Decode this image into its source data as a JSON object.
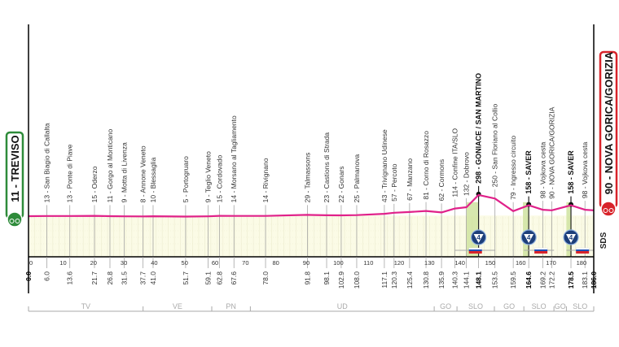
{
  "chart_data": {
    "type": "area",
    "xlim": [
      0,
      186.0
    ],
    "x_ticks": [
      0,
      10,
      20,
      30,
      40,
      50,
      60,
      70,
      80,
      90,
      100,
      110,
      120,
      130,
      140,
      150,
      160,
      170,
      180
    ],
    "start": {
      "km": 0.0,
      "elevation": 11,
      "label": "11 - TREVISO",
      "color": "#2e8b3a"
    },
    "finish": {
      "km": 186.0,
      "elevation": 90,
      "label": "90 - NOVA GORICA/GORIZIA",
      "color": "#d8232a"
    },
    "profile_color": "#e0218a",
    "waypoints": [
      {
        "km": "6.0",
        "elevation": 13,
        "label": "13 - San Biagio di Callalta"
      },
      {
        "km": "13.6",
        "elevation": 13,
        "label": "13 - Ponte di Piave"
      },
      {
        "km": "21.7",
        "elevation": 15,
        "label": "15 - Oderzo"
      },
      {
        "km": "26.8",
        "elevation": 11,
        "label": "11 - Gorgo al Monticano"
      },
      {
        "km": "31.5",
        "elevation": 9,
        "label": "9 - Motta di Livenza"
      },
      {
        "km": "37.7",
        "elevation": 8,
        "label": "8 - Annone Veneto"
      },
      {
        "km": "41.0",
        "elevation": 10,
        "label": "10 - Blessaglia"
      },
      {
        "km": "51.7",
        "elevation": 5,
        "label": "5 - Portogruaro"
      },
      {
        "km": "59.1",
        "elevation": 9,
        "label": "9 - Teglio Veneto"
      },
      {
        "km": "62.8",
        "elevation": 15,
        "label": "15 - Cordovado"
      },
      {
        "km": "67.6",
        "elevation": 14,
        "label": "14 - Morsano al Tagliamento"
      },
      {
        "km": "78.0",
        "elevation": 14,
        "label": "14 - Rivignano"
      },
      {
        "km": "91.8",
        "elevation": 29,
        "label": "29 - Talmassons"
      },
      {
        "km": "98.1",
        "elevation": 23,
        "label": "23 - Castions di Strada"
      },
      {
        "km": "102.9",
        "elevation": 22,
        "label": "22 - Gonars"
      },
      {
        "km": "108.0",
        "elevation": 25,
        "label": "25 - Palmanova"
      },
      {
        "km": "117.1",
        "elevation": 43,
        "label": "43 - Trivignano Udinese"
      },
      {
        "km": "120.3",
        "elevation": 57,
        "label": "57 - Percoto"
      },
      {
        "km": "125.4",
        "elevation": 67,
        "label": "67 - Manzano"
      },
      {
        "km": "130.8",
        "elevation": 81,
        "label": "81 - Corno di Rosazzo"
      },
      {
        "km": "135.9",
        "elevation": 62,
        "label": "62 - Cormons"
      },
      {
        "km": "140.3",
        "elevation": 114,
        "label": "114 - Confine ITA/SLO"
      },
      {
        "km": "144.1",
        "elevation": 132,
        "label": "132 - Dobrovo"
      },
      {
        "km": "148.1",
        "elevation": 298,
        "label": "298 - GONIACE / SAN MARTINO",
        "kom": "4",
        "bold": true
      },
      {
        "km": "153.5",
        "elevation": 250,
        "label": "250 - San Floriano al Collio"
      },
      {
        "km": "159.5",
        "elevation": 79,
        "label": "79 - Ingresso circuito"
      },
      {
        "km": "164.6",
        "elevation": 158,
        "label": "158 - SAVER",
        "kom": "4",
        "bold": true
      },
      {
        "km": "169.2",
        "elevation": 98,
        "label": "98 - Vojkova cesta"
      },
      {
        "km": "172.2",
        "elevation": 90,
        "label": "90 - NOVA GORICA/GORIZIA"
      },
      {
        "km": "178.5",
        "elevation": 158,
        "label": "158 - SAVER",
        "kom": "4",
        "bold": true
      },
      {
        "km": "183.1",
        "elevation": 98,
        "label": "98 - Vojkova cesta"
      }
    ],
    "climb_zones": [
      [
        144.1,
        148.1
      ],
      [
        162.7,
        164.6
      ],
      [
        177.0,
        178.5
      ]
    ],
    "slovenia_flag_segments": [
      [
        140.3,
        153.5
      ],
      [
        163.0,
        172.9
      ],
      [
        177.0,
        186.0
      ]
    ],
    "regions": [
      {
        "label": "TV",
        "from": 0.0,
        "to": 37.7
      },
      {
        "label": "VE",
        "from": 37.7,
        "to": 60.3
      },
      {
        "label": "PN",
        "from": 60.3,
        "to": 73.0
      },
      {
        "label": "UD",
        "from": 73.0,
        "to": 133.5
      },
      {
        "label": "GO",
        "from": 133.5,
        "to": 141.0
      },
      {
        "label": "SLO",
        "from": 141.0,
        "to": 153.3
      },
      {
        "label": "GO",
        "from": 153.3,
        "to": 163.0
      },
      {
        "label": "SLO",
        "from": 163.0,
        "to": 172.9
      },
      {
        "label": "GO",
        "from": 172.9,
        "to": 177.0
      },
      {
        "label": "SLO",
        "from": 177.0,
        "to": 186.0
      }
    ],
    "logo": "SDS"
  }
}
